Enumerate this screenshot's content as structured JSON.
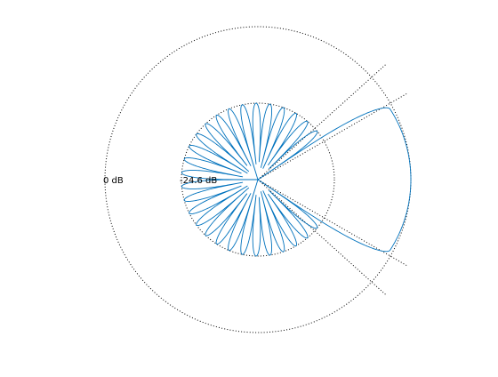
{
  "chart_data": {
    "type": "polar-line",
    "title": "",
    "ring_labels": [
      "0 dB",
      "-24.6 dB"
    ],
    "rings_db": [
      0,
      -24.6
    ],
    "range_db": [
      -49.2,
      0
    ],
    "series_color": "#0072bd",
    "grid_color": "#000000",
    "grid_style": "dotted",
    "sector_half_angle_deg": 36,
    "boundary_lines_deg": [
      30,
      42
    ],
    "main_lobe": {
      "center_deg": 0,
      "half_width_deg": 34,
      "level_db": 0,
      "edge_peak_db": -1.0
    },
    "sidelobes": {
      "count": 28,
      "level_db": -24.6,
      "lobe_width_factor": 3,
      "null_db": -49.2
    }
  }
}
